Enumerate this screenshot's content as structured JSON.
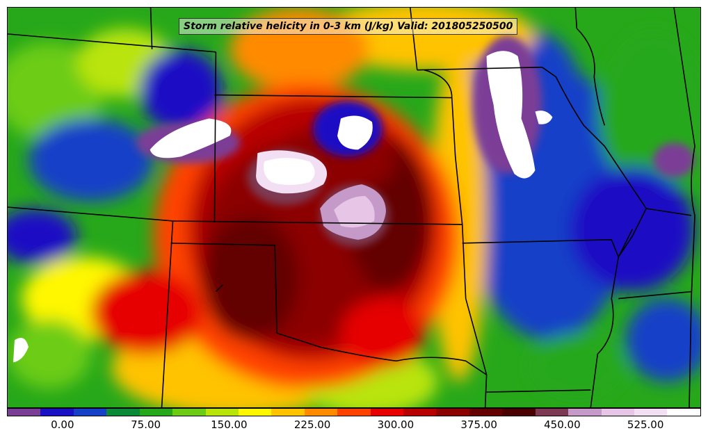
{
  "title": "Storm relative helicity in 0-3 km (J/kg) Valid: 201805250500",
  "colorbar": {
    "colors": [
      "#7b3e96",
      "#1a10c4",
      "#1740c8",
      "#0a8a37",
      "#27a81a",
      "#6ccc14",
      "#b9e40a",
      "#fff700",
      "#ffc300",
      "#ff8a00",
      "#ff4200",
      "#e60000",
      "#b80000",
      "#8c0000",
      "#640000",
      "#4a0000",
      "#7d3a52",
      "#c69ac8",
      "#e6c5e6",
      "#f3dff3",
      "#ffffff"
    ],
    "labels": [
      "0.00",
      "75.00",
      "150.00",
      "225.00",
      "300.00",
      "375.00",
      "450.00",
      "525.00"
    ],
    "range": [
      -50,
      575
    ]
  },
  "legend_colors": {
    "state_border": "#000000"
  }
}
